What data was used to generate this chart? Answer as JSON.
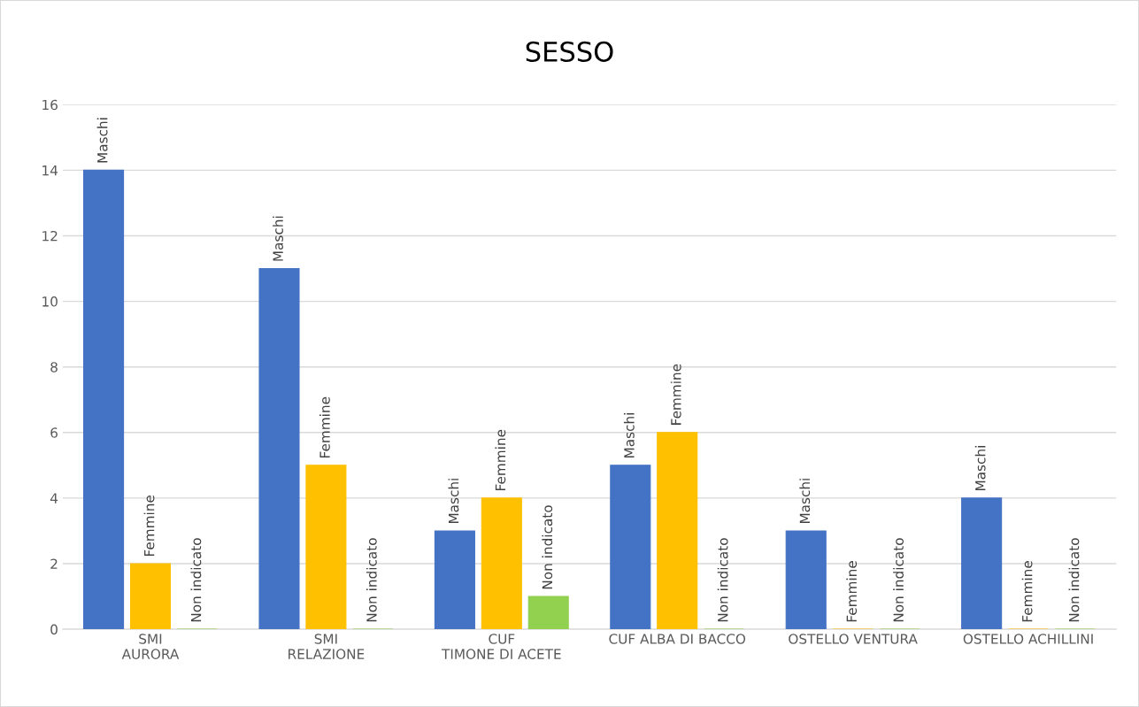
{
  "chart_data": {
    "type": "bar",
    "title": "SESSO",
    "categories": [
      "SMI\nAURORA",
      "SMI\nRELAZIONE",
      "CUF\nTIMONE DI ACETE",
      "CUF ALBA DI BACCO",
      "OSTELLO VENTURA",
      "OSTELLO ACHILLINI"
    ],
    "series": [
      {
        "name": "Maschi",
        "color": "#4472c4",
        "values": [
          14,
          11,
          3,
          5,
          3,
          4
        ]
      },
      {
        "name": "Femmine",
        "color": "#ffc000",
        "values": [
          2,
          5,
          4,
          6,
          0,
          0
        ]
      },
      {
        "name": "Non indicato",
        "color": "#92d050",
        "values": [
          0,
          0,
          1,
          0,
          0,
          0
        ]
      }
    ],
    "ylim": [
      0,
      16
    ],
    "yticks": [
      0,
      2,
      4,
      6,
      8,
      10,
      12,
      14,
      16
    ],
    "grid": "y",
    "legend": false
  }
}
